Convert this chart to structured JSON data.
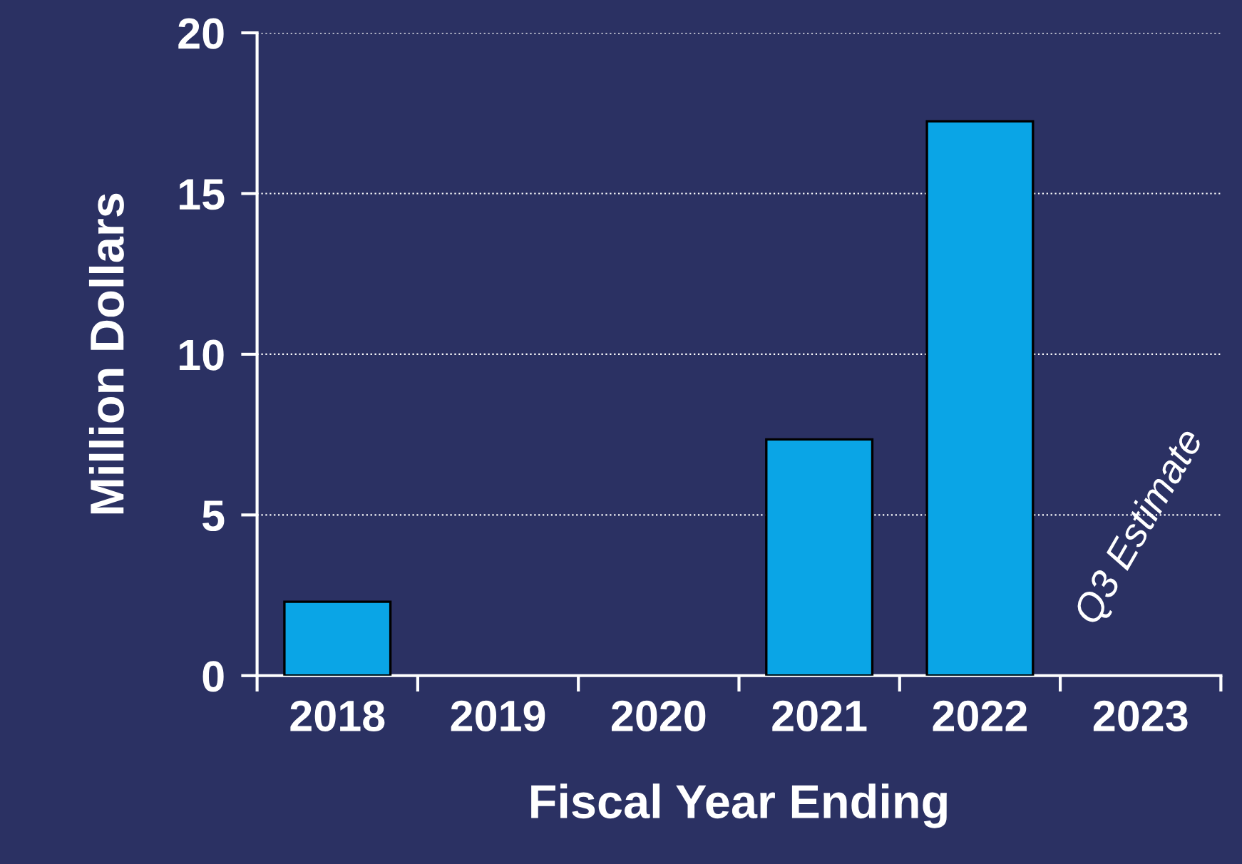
{
  "chart_data": {
    "type": "bar",
    "xlabel": "Fiscal Year Ending",
    "ylabel": "Million Dollars",
    "categories": [
      "2018",
      "2019",
      "2020",
      "2021",
      "2022",
      "2023"
    ],
    "values": [
      2.3,
      null,
      null,
      7.35,
      17.25,
      null
    ],
    "color": "#0aa5e6",
    "ylim": [
      0,
      20
    ],
    "yticks": [
      0,
      5,
      10,
      15,
      20
    ],
    "grid": "y",
    "annotations": [
      "Q3 Estimate"
    ]
  }
}
